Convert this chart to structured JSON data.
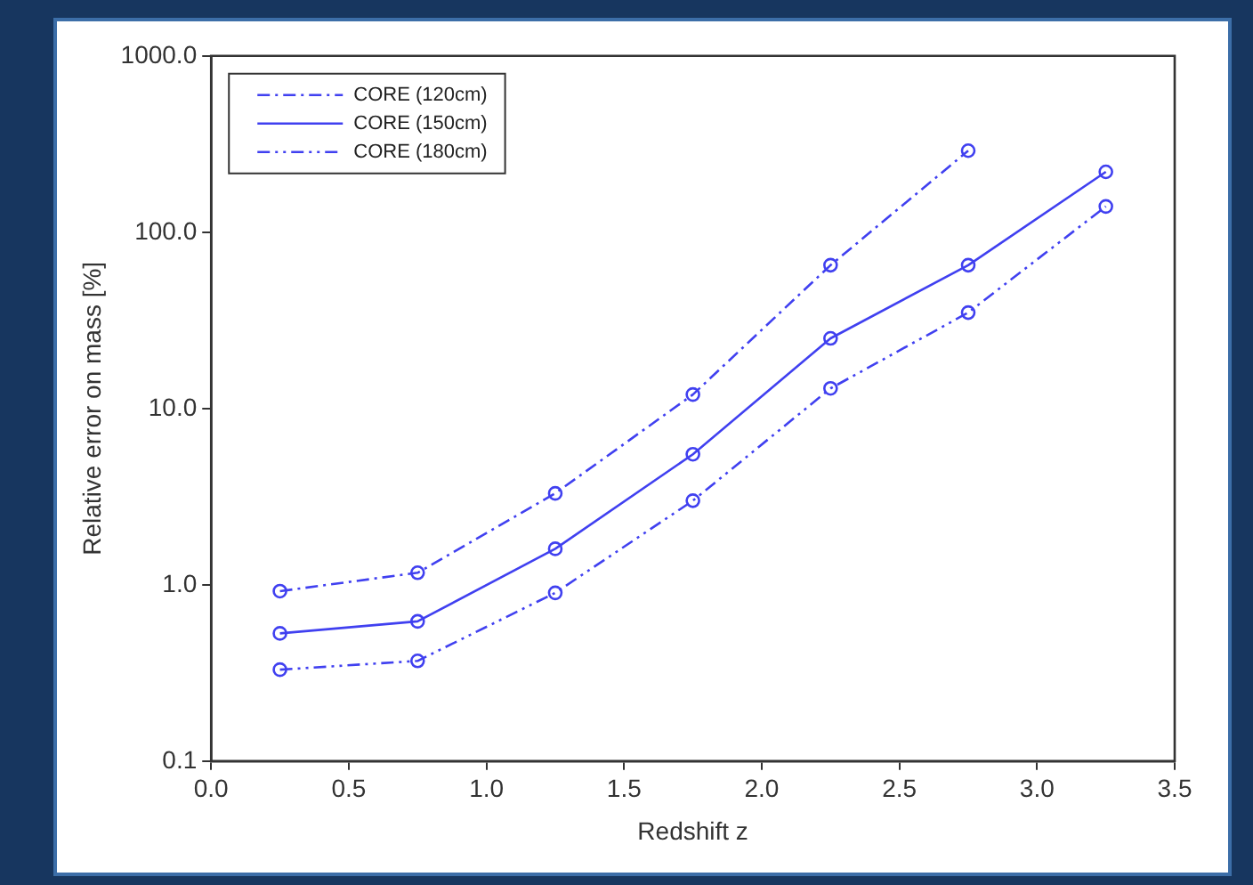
{
  "chart_data": {
    "type": "line",
    "xlabel": "Redshift z",
    "ylabel": "Relative error on mass [%]",
    "x": [
      0.25,
      0.75,
      1.25,
      1.75,
      2.25,
      2.75,
      3.25
    ],
    "series": [
      {
        "name": "CORE (120cm)",
        "color": "#4040f0",
        "line_style": "dashed",
        "values": [
          0.92,
          1.17,
          3.3,
          12,
          65,
          290,
          null
        ]
      },
      {
        "name": "CORE (150cm)",
        "color": "#4040f0",
        "line_style": "solid",
        "values": [
          0.53,
          0.62,
          1.6,
          5.5,
          25,
          65,
          220
        ]
      },
      {
        "name": "CORE (180cm)",
        "color": "#4040f0",
        "line_style": "dotted",
        "values": [
          0.33,
          0.37,
          0.9,
          3.0,
          13,
          35,
          140
        ]
      }
    ],
    "xlim": [
      0,
      3.5
    ],
    "xticks": [
      {
        "value": 0,
        "label": "0.0"
      },
      {
        "value": 0.5,
        "label": "0.5"
      },
      {
        "value": 1,
        "label": "1.0"
      },
      {
        "value": 1.5,
        "label": "1.5"
      },
      {
        "value": 2,
        "label": "2.0"
      },
      {
        "value": 2.5,
        "label": "2.5"
      },
      {
        "value": 3,
        "label": "3.0"
      },
      {
        "value": 3.5,
        "label": "3.5"
      }
    ],
    "ylim": [
      0.1,
      1000
    ],
    "yticks": [
      0.1,
      {
        "value": 1,
        "label": "1.0"
      },
      {
        "value": 10,
        "label": "10.0"
      },
      {
        "value": 100,
        "label": "100.0"
      },
      {
        "value": 1000,
        "label": "1000.0"
      }
    ],
    "log": "y",
    "grid": false,
    "legend": "top left",
    "marker": "circle"
  }
}
